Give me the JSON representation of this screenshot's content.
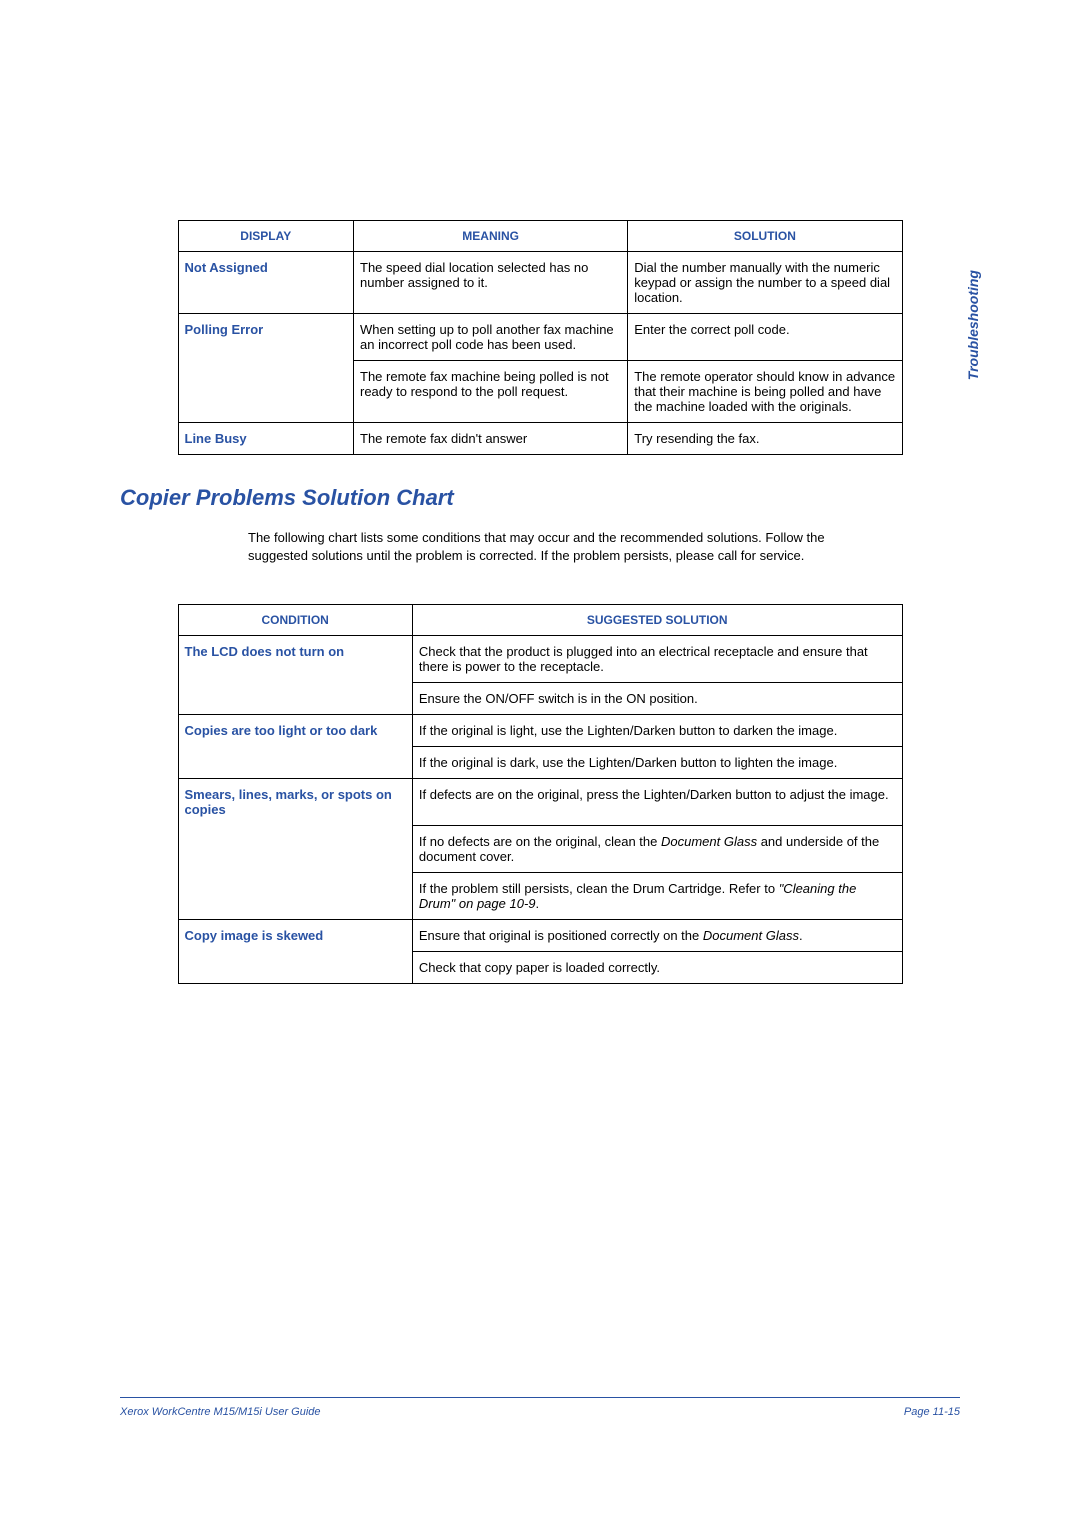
{
  "side_label": "Troubleshooting",
  "table1": {
    "headers": {
      "display": "DISPLAY",
      "meaning": "MEANING",
      "solution": "SOLUTION"
    },
    "rows": [
      {
        "display": "Not Assigned",
        "meaning": "The speed dial location selected has no number assigned to it.",
        "solution": "Dial the number manually with the numeric keypad or assign the number to a speed dial location."
      },
      {
        "display": "Polling Error",
        "meaning": "When setting up to poll another fax machine an incorrect poll code has been used.",
        "solution": "Enter the correct poll code."
      },
      {
        "display": "",
        "meaning": "The remote fax machine being polled is not ready to respond to the poll request.",
        "solution": "The remote operator should know in advance that their machine is being polled and have the machine loaded with the originals."
      },
      {
        "display": "Line Busy",
        "meaning": "The remote fax didn't answer",
        "solution": "Try resending the fax."
      }
    ]
  },
  "section_title": "Copier Problems Solution Chart",
  "intro_text": "The following chart lists some conditions that may occur and the recommended solutions. Follow the suggested solutions until the problem is corrected. If the problem persists, please call for service.",
  "table2": {
    "headers": {
      "condition": "CONDITION",
      "suggested": "SUGGESTED SOLUTION"
    },
    "rows": {
      "r1": {
        "cond": "The LCD does not turn on",
        "s1": "Check that the product is plugged into an electrical receptacle and ensure that there is power to the receptacle.",
        "s2": "Ensure the ON/OFF switch is in the ON position."
      },
      "r2": {
        "cond": "Copies are too light or too dark",
        "s1": "If the original is light, use the Lighten/Darken button to darken the image.",
        "s2": "If the original is dark, use the Lighten/Darken button to lighten the image."
      },
      "r3": {
        "cond": "Smears, lines, marks, or spots on copies",
        "s1": "If defects are on the original, press the Lighten/Darken button to adjust the image.",
        "s2_a": "If no defects are on the original, clean the ",
        "s2_b": "Document Glass",
        "s2_c": " and underside of the document cover.",
        "s3_a": "If the problem still persists, clean the Drum Cartridge.  Refer to ",
        "s3_b": "\"Cleaning the Drum\" on page 10-9",
        "s3_c": "."
      },
      "r4": {
        "cond": "Copy image is skewed",
        "s1_a": "Ensure that original is positioned correctly on the ",
        "s1_b": "Document Glass",
        "s1_c": ".",
        "s2": "Check that copy paper is loaded correctly."
      }
    }
  },
  "footer": {
    "left": "Xerox WorkCentre M15/M15i User Guide",
    "right": "Page 11-15"
  }
}
